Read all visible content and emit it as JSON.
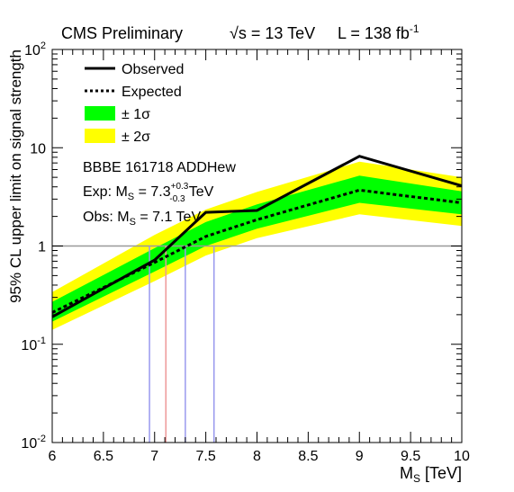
{
  "header": {
    "experiment": "CMS Preliminary",
    "sqrt_s_symbol": "√s",
    "sqrt_s_value": " = 13 TeV",
    "lumi_prefix": "L = 138 fb",
    "lumi_exp": "-1"
  },
  "legend": {
    "observed": "Observed",
    "expected": "Expected",
    "band1": "± 1σ",
    "band2": "± 2σ"
  },
  "annotations": {
    "analysis": "BBBE  161718  ADDHew",
    "exp_prefix": "Exp: M",
    "exp_sub": "S",
    "exp_value": " = 7.3",
    "exp_up": "+0.3",
    "exp_down": "-0.3",
    "exp_unit": " TeV",
    "obs_prefix": "Obs: M",
    "obs_sub": "S",
    "obs_value": " = 7.1 TeV"
  },
  "axes": {
    "ylabel": "95% CL upper limit on signal strength",
    "xlabel_main": "M",
    "xlabel_sub": "S",
    "xlabel_unit": " [TeV]"
  },
  "chart_data": {
    "type": "line",
    "x": [
      6,
      7,
      7.5,
      8,
      9,
      10
    ],
    "series": [
      {
        "name": "Observed",
        "values": [
          0.19,
          0.72,
          2.2,
          2.3,
          8.2,
          4.1
        ]
      },
      {
        "name": "Expected",
        "values": [
          0.21,
          0.68,
          1.25,
          1.85,
          3.7,
          2.75
        ]
      },
      {
        "name": "± 1σ",
        "low": [
          0.17,
          0.55,
          1.0,
          1.5,
          2.75,
          2.1
        ],
        "high": [
          0.27,
          0.95,
          1.75,
          2.65,
          5.2,
          3.6
        ]
      },
      {
        "name": "± 2σ",
        "low": [
          0.14,
          0.44,
          0.8,
          1.2,
          2.1,
          1.6
        ],
        "high": [
          0.34,
          1.3,
          2.35,
          3.55,
          7.2,
          5.0
        ]
      }
    ],
    "xlim": [
      6,
      10
    ],
    "ylim": [
      0.01,
      100
    ],
    "yscale": "log",
    "xticks": [
      "6",
      "6.5",
      "7",
      "7.5",
      "8",
      "8.5",
      "9",
      "9.5",
      "10"
    ],
    "yticks": [
      "10^-2",
      "10^-1",
      "1",
      "10",
      "10^2"
    ],
    "reference_line_y": 1,
    "vertical_lines": [
      {
        "x": 6.95,
        "color": "#9999ee"
      },
      {
        "x": 7.11,
        "color": "#ee9999"
      },
      {
        "x": 7.3,
        "color": "#9999ee"
      },
      {
        "x": 7.58,
        "color": "#9999ee"
      }
    ],
    "colors": {
      "band1": "#00ff00",
      "band2": "#ffff00",
      "line": "#000000"
    }
  }
}
